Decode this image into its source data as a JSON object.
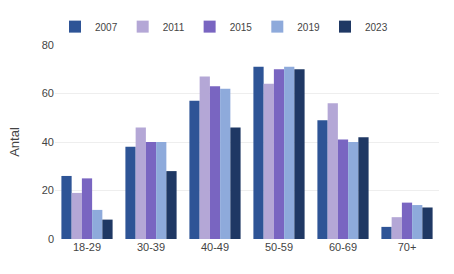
{
  "chart_data": {
    "type": "bar",
    "ylabel": "Antal",
    "categories": [
      "18-29",
      "30-39",
      "40-49",
      "50-59",
      "60-69",
      "70+"
    ],
    "series": [
      {
        "name": "2007",
        "color": "#2E5496",
        "values": [
          26,
          38,
          57,
          71,
          49,
          5
        ]
      },
      {
        "name": "2011",
        "color": "#B4A7D6",
        "values": [
          19,
          46,
          67,
          64,
          56,
          9
        ]
      },
      {
        "name": "2015",
        "color": "#7965C1",
        "values": [
          25,
          40,
          63,
          70,
          41,
          15
        ]
      },
      {
        "name": "2019",
        "color": "#8EAADB",
        "values": [
          12,
          40,
          62,
          71,
          40,
          14
        ]
      },
      {
        "name": "2023",
        "color": "#1F3864",
        "values": [
          8,
          28,
          46,
          70,
          42,
          13
        ]
      }
    ],
    "ylim": [
      0,
      80
    ],
    "yticks": [
      0,
      20,
      40,
      60,
      80
    ],
    "grid": true,
    "legend": "upper left"
  }
}
